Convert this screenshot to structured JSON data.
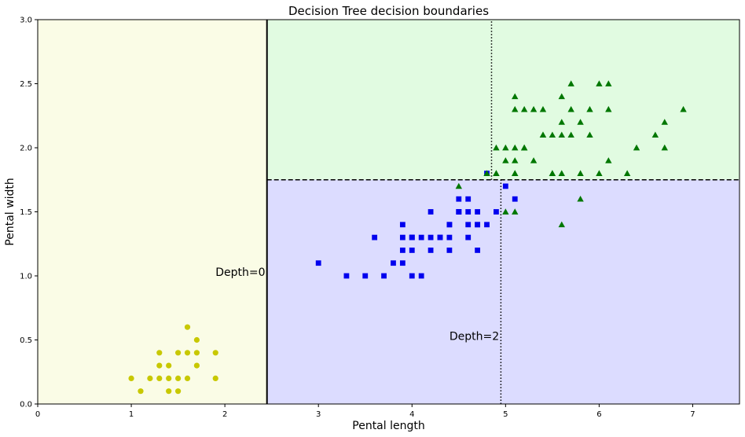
{
  "chart_data": {
    "type": "scatter",
    "title": "Decision Tree decision boundaries",
    "xlabel": "Pental length",
    "ylabel": "Pental width",
    "xlim": [
      0,
      7.5
    ],
    "ylim": [
      0,
      3.0
    ],
    "xticks": [
      0,
      1,
      2,
      3,
      4,
      5,
      6,
      7
    ],
    "yticks": [
      0.0,
      0.5,
      1.0,
      1.5,
      2.0,
      2.5,
      3.0
    ],
    "ytick_labels": [
      "0.0",
      "0.5",
      "1.0",
      "1.5",
      "2.0",
      "2.5",
      "3.0"
    ],
    "regions": [
      {
        "x_range": [
          0,
          2.45
        ],
        "y_range": [
          0,
          3.0
        ],
        "color": "#fafce6"
      },
      {
        "x_range": [
          2.45,
          7.5
        ],
        "y_range": [
          1.75,
          3.0
        ],
        "color": "#e1fbe1"
      },
      {
        "x_range": [
          2.45,
          7.5
        ],
        "y_range": [
          0,
          1.75
        ],
        "color": "#dcdcff"
      }
    ],
    "boundaries": [
      {
        "name": "depth-0",
        "orientation": "vertical",
        "x": 2.45,
        "y_range": [
          0,
          3.0
        ],
        "style": "solid",
        "color": "#000000"
      },
      {
        "name": "depth-1",
        "orientation": "horizontal",
        "y": 1.75,
        "x_range": [
          2.45,
          7.5
        ],
        "style": "dashed",
        "color": "#000000"
      },
      {
        "name": "depth-2-upper",
        "orientation": "vertical",
        "x": 4.85,
        "y_range": [
          1.75,
          3.0
        ],
        "style": "dotted",
        "color": "#000000"
      },
      {
        "name": "depth-2-lower",
        "orientation": "vertical",
        "x": 4.95,
        "y_range": [
          0,
          1.75
        ],
        "style": "dotted",
        "color": "#000000"
      }
    ],
    "annotations": [
      {
        "text": "Depth=0",
        "x": 1.9,
        "y": 1.0
      },
      {
        "text": "Depth=2",
        "x": 4.4,
        "y": 0.5
      }
    ],
    "series": [
      {
        "marker": "circle",
        "color": "#c8c800",
        "points": [
          [
            1.4,
            0.2
          ],
          [
            1.3,
            0.2
          ],
          [
            1.5,
            0.2
          ],
          [
            1.7,
            0.4
          ],
          [
            1.4,
            0.3
          ],
          [
            1.5,
            0.1
          ],
          [
            1.6,
            0.2
          ],
          [
            1.1,
            0.1
          ],
          [
            1.2,
            0.2
          ],
          [
            1.5,
            0.4
          ],
          [
            1.3,
            0.4
          ],
          [
            1.7,
            0.3
          ],
          [
            1.0,
            0.2
          ],
          [
            1.7,
            0.5
          ],
          [
            1.9,
            0.2
          ],
          [
            1.6,
            0.4
          ],
          [
            1.4,
            0.1
          ],
          [
            1.6,
            0.6
          ],
          [
            1.9,
            0.4
          ],
          [
            1.3,
            0.3
          ]
        ]
      },
      {
        "marker": "square",
        "color": "#0000ee",
        "points": [
          [
            4.7,
            1.4
          ],
          [
            4.5,
            1.5
          ],
          [
            4.9,
            1.5
          ],
          [
            4.0,
            1.3
          ],
          [
            4.6,
            1.5
          ],
          [
            3.3,
            1.0
          ],
          [
            4.6,
            1.3
          ],
          [
            3.9,
            1.4
          ],
          [
            3.5,
            1.0
          ],
          [
            4.2,
            1.5
          ],
          [
            4.0,
            1.0
          ],
          [
            4.7,
            1.4
          ],
          [
            3.6,
            1.3
          ],
          [
            4.4,
            1.4
          ],
          [
            4.1,
            1.0
          ],
          [
            4.5,
            1.5
          ],
          [
            3.9,
            1.1
          ],
          [
            4.8,
            1.8
          ],
          [
            4.0,
            1.3
          ],
          [
            4.7,
            1.2
          ],
          [
            4.3,
            1.3
          ],
          [
            4.4,
            1.4
          ],
          [
            5.0,
            1.7
          ],
          [
            4.5,
            1.5
          ],
          [
            3.8,
            1.1
          ],
          [
            3.7,
            1.0
          ],
          [
            3.9,
            1.2
          ],
          [
            5.1,
            1.6
          ],
          [
            4.5,
            1.6
          ],
          [
            4.7,
            1.5
          ],
          [
            4.4,
            1.3
          ],
          [
            4.1,
            1.3
          ],
          [
            4.0,
            1.2
          ],
          [
            4.4,
            1.2
          ],
          [
            4.6,
            1.4
          ],
          [
            4.0,
            1.3
          ],
          [
            3.0,
            1.1
          ],
          [
            4.2,
            1.3
          ],
          [
            4.2,
            1.2
          ],
          [
            4.3,
            1.3
          ],
          [
            4.8,
            1.4
          ],
          [
            4.6,
            1.6
          ],
          [
            3.9,
            1.3
          ]
        ]
      },
      {
        "marker": "triangle",
        "color": "#007700",
        "points": [
          [
            6.0,
            2.5
          ],
          [
            5.1,
            1.9
          ],
          [
            5.9,
            2.1
          ],
          [
            5.6,
            1.8
          ],
          [
            5.8,
            2.2
          ],
          [
            6.6,
            2.1
          ],
          [
            4.5,
            1.7
          ],
          [
            6.3,
            1.8
          ],
          [
            5.8,
            1.8
          ],
          [
            6.1,
            2.5
          ],
          [
            5.1,
            2.0
          ],
          [
            5.3,
            1.9
          ],
          [
            5.5,
            2.1
          ],
          [
            5.0,
            2.0
          ],
          [
            5.1,
            2.4
          ],
          [
            5.3,
            2.3
          ],
          [
            5.5,
            1.8
          ],
          [
            6.7,
            2.2
          ],
          [
            6.9,
            2.3
          ],
          [
            5.0,
            1.5
          ],
          [
            5.7,
            2.3
          ],
          [
            4.9,
            2.0
          ],
          [
            6.7,
            2.0
          ],
          [
            4.9,
            1.8
          ],
          [
            5.7,
            2.1
          ],
          [
            6.0,
            1.8
          ],
          [
            4.8,
            1.8
          ],
          [
            5.6,
            2.1
          ],
          [
            5.8,
            1.6
          ],
          [
            6.1,
            1.9
          ],
          [
            6.4,
            2.0
          ],
          [
            5.6,
            2.2
          ],
          [
            5.1,
            1.5
          ],
          [
            5.6,
            1.4
          ],
          [
            6.1,
            2.3
          ],
          [
            5.6,
            2.4
          ],
          [
            5.5,
            1.8
          ],
          [
            5.4,
            2.1
          ],
          [
            5.4,
            2.3
          ],
          [
            5.1,
            2.3
          ],
          [
            5.9,
            2.3
          ],
          [
            5.7,
            2.5
          ],
          [
            5.2,
            2.3
          ],
          [
            5.2,
            2.0
          ],
          [
            5.4,
            2.1
          ],
          [
            5.1,
            1.8
          ],
          [
            4.9,
            1.8
          ],
          [
            5.1,
            1.8
          ],
          [
            5.0,
            1.9
          ],
          [
            5.2,
            2.0
          ]
        ]
      }
    ]
  }
}
